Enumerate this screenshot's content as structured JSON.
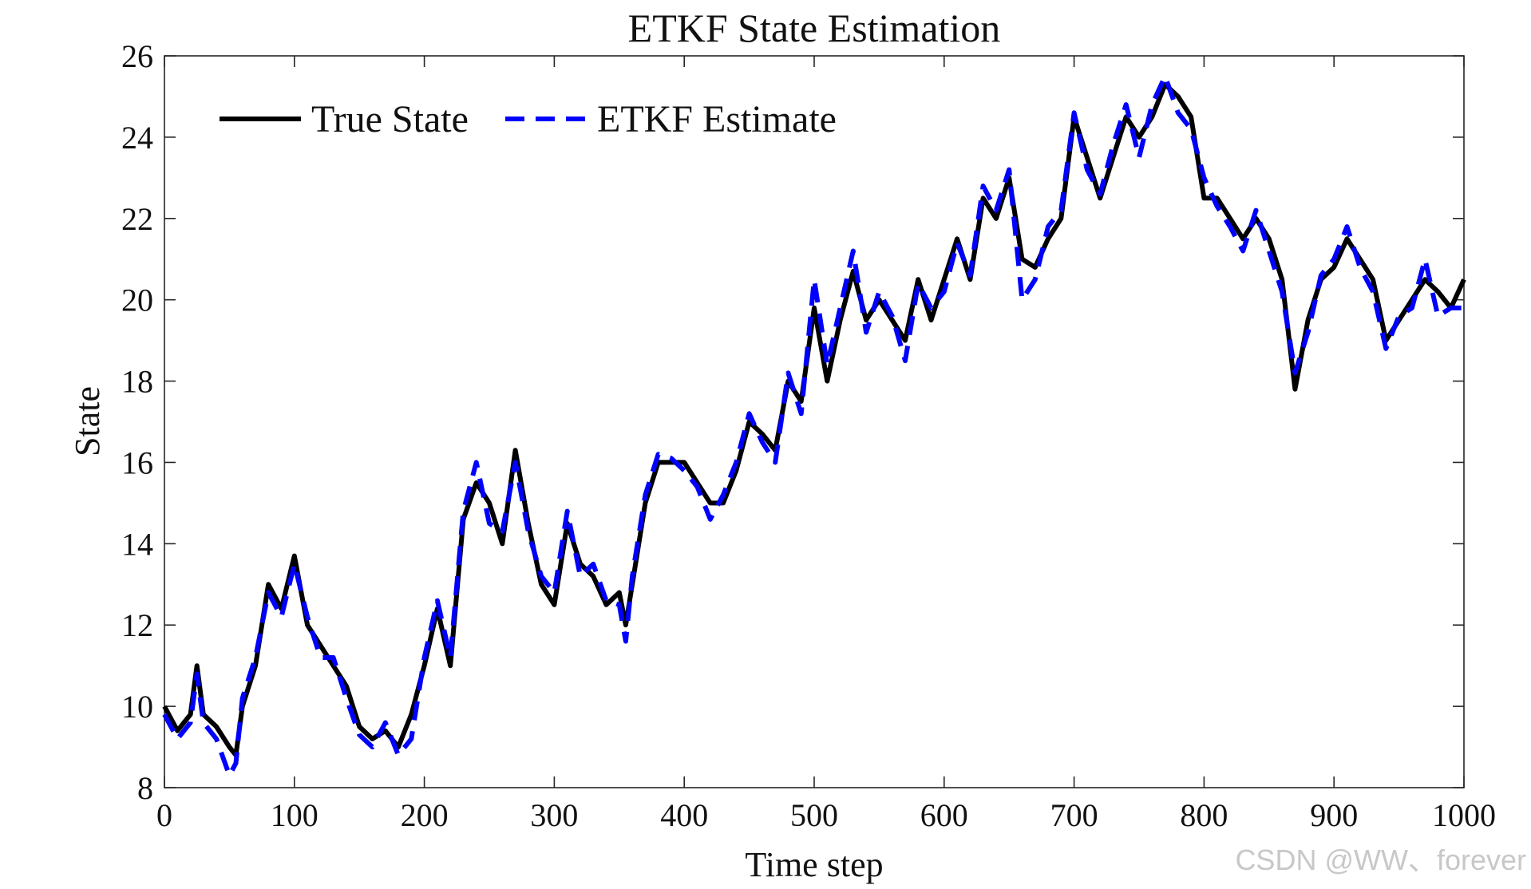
{
  "watermark": "CSDN @WW、forever",
  "chart_data": {
    "type": "line",
    "title": "ETKF State Estimation",
    "xlabel": "Time step",
    "ylabel": "State",
    "xlim": [
      0,
      1000
    ],
    "ylim": [
      8,
      26
    ],
    "xticks": [
      0,
      100,
      200,
      300,
      400,
      500,
      600,
      700,
      800,
      900,
      1000
    ],
    "yticks": [
      8,
      10,
      12,
      14,
      16,
      18,
      20,
      22,
      24,
      26
    ],
    "grid": false,
    "legend_position": "top-left",
    "series": [
      {
        "name": "True State",
        "color": "#000000",
        "style": "solid",
        "x": [
          0,
          10,
          20,
          25,
          30,
          40,
          50,
          55,
          60,
          70,
          80,
          90,
          100,
          110,
          120,
          130,
          140,
          150,
          160,
          170,
          180,
          190,
          200,
          210,
          220,
          230,
          240,
          250,
          260,
          270,
          280,
          290,
          300,
          310,
          320,
          330,
          340,
          350,
          355,
          360,
          370,
          380,
          390,
          400,
          410,
          420,
          430,
          440,
          450,
          460,
          470,
          480,
          490,
          500,
          510,
          520,
          530,
          540,
          550,
          560,
          570,
          580,
          590,
          600,
          610,
          620,
          630,
          640,
          650,
          660,
          670,
          680,
          690,
          700,
          710,
          720,
          730,
          740,
          750,
          760,
          770,
          780,
          790,
          800,
          810,
          820,
          830,
          840,
          850,
          860,
          870,
          880,
          890,
          900,
          910,
          920,
          930,
          940,
          950,
          960,
          970,
          980,
          990,
          1000
        ],
        "y": [
          10.0,
          9.4,
          9.8,
          11.0,
          9.8,
          9.5,
          9.0,
          8.8,
          10.0,
          11.0,
          13.0,
          12.4,
          13.7,
          12.0,
          11.5,
          11.0,
          10.5,
          9.5,
          9.2,
          9.4,
          9.0,
          9.8,
          11.0,
          12.4,
          11.0,
          14.6,
          15.5,
          15.0,
          14.0,
          16.3,
          14.5,
          13.0,
          12.5,
          14.5,
          13.5,
          13.2,
          12.5,
          12.8,
          12.0,
          13.0,
          15.0,
          16.0,
          16.0,
          16.0,
          15.5,
          15.0,
          15.0,
          15.8,
          17.0,
          16.7,
          16.3,
          18.0,
          17.5,
          19.8,
          18.0,
          19.5,
          20.7,
          19.5,
          20.0,
          19.5,
          19.0,
          20.5,
          19.5,
          20.5,
          21.5,
          20.5,
          22.5,
          22.0,
          23.0,
          21.0,
          20.8,
          21.5,
          22.0,
          24.5,
          23.5,
          22.5,
          23.5,
          24.5,
          24.0,
          24.5,
          25.3,
          25.0,
          24.5,
          22.5,
          22.5,
          22.0,
          21.5,
          22.0,
          21.5,
          20.5,
          17.8,
          19.5,
          20.5,
          20.8,
          21.5,
          21.0,
          20.5,
          19.0,
          19.5,
          20.0,
          20.5,
          20.2,
          19.8,
          20.5
        ]
      },
      {
        "name": "ETKF Estimate",
        "color": "#0000ff",
        "style": "dashed",
        "x": [
          0,
          10,
          20,
          25,
          30,
          40,
          50,
          55,
          60,
          70,
          80,
          90,
          100,
          110,
          120,
          130,
          140,
          150,
          160,
          170,
          180,
          190,
          200,
          210,
          220,
          230,
          240,
          250,
          260,
          270,
          280,
          290,
          300,
          310,
          320,
          330,
          340,
          350,
          355,
          360,
          370,
          380,
          390,
          400,
          410,
          420,
          430,
          440,
          450,
          460,
          470,
          480,
          490,
          500,
          510,
          520,
          530,
          540,
          550,
          560,
          570,
          580,
          590,
          600,
          610,
          620,
          630,
          640,
          650,
          660,
          670,
          680,
          690,
          700,
          710,
          720,
          730,
          740,
          750,
          760,
          770,
          780,
          790,
          800,
          810,
          820,
          830,
          840,
          850,
          860,
          870,
          880,
          890,
          900,
          910,
          920,
          930,
          940,
          950,
          960,
          970,
          980,
          990,
          1000
        ],
        "y": [
          9.8,
          9.2,
          9.6,
          10.8,
          9.6,
          9.2,
          8.3,
          8.6,
          10.2,
          11.2,
          12.8,
          12.2,
          13.5,
          12.2,
          11.2,
          11.2,
          10.2,
          9.3,
          9.0,
          9.6,
          8.8,
          9.2,
          11.2,
          12.6,
          11.2,
          14.8,
          16.0,
          14.5,
          14.3,
          16.0,
          14.3,
          13.2,
          12.8,
          14.8,
          13.2,
          13.5,
          12.6,
          12.5,
          11.6,
          13.2,
          15.2,
          16.2,
          16.1,
          15.8,
          15.4,
          14.6,
          15.2,
          16.0,
          17.2,
          16.5,
          16.0,
          18.2,
          17.2,
          20.5,
          18.4,
          19.8,
          21.2,
          19.2,
          20.2,
          19.6,
          18.5,
          20.4,
          19.8,
          20.2,
          21.4,
          20.6,
          22.8,
          22.2,
          23.2,
          20.0,
          20.5,
          21.8,
          22.2,
          24.6,
          23.2,
          22.6,
          23.8,
          24.8,
          23.5,
          24.8,
          25.5,
          24.6,
          24.2,
          23.0,
          22.3,
          21.8,
          21.2,
          22.2,
          21.2,
          20.2,
          18.2,
          19.2,
          20.6,
          21.0,
          21.8,
          20.8,
          20.2,
          18.8,
          19.6,
          19.8,
          21.0,
          19.6,
          19.8,
          19.8
        ]
      }
    ]
  }
}
